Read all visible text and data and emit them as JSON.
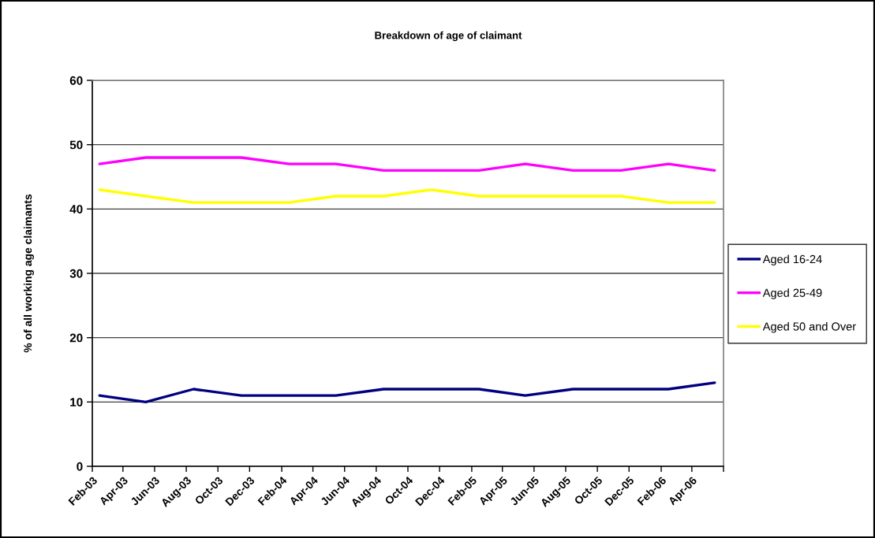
{
  "chart_data": {
    "type": "line",
    "title": "Breakdown of age of claimant",
    "ylabel": "% of all working age claimants",
    "x": [
      "2003-02-15",
      "2003-05-15",
      "2003-08-15",
      "2003-11-15",
      "2004-02-15",
      "2004-05-15",
      "2004-08-15",
      "2004-11-15",
      "2005-02-15",
      "2005-05-15",
      "2005-08-15",
      "2005-11-15",
      "2006-02-15",
      "2006-05-15"
    ],
    "series": [
      {
        "name": "Aged 16-24",
        "color": "#000080",
        "values": [
          11,
          10,
          12,
          11,
          11,
          11,
          12,
          12,
          12,
          11,
          12,
          12,
          12,
          13
        ]
      },
      {
        "name": "Aged 25-49",
        "color": "#ff00ff",
        "values": [
          47,
          48,
          48,
          48,
          47,
          47,
          46,
          46,
          46,
          47,
          46,
          46,
          47,
          46
        ]
      },
      {
        "name": "Aged 50 and Over",
        "color": "#ffff00",
        "values": [
          43,
          42,
          41,
          41,
          41,
          42,
          42,
          43,
          42,
          42,
          42,
          42,
          41,
          41
        ]
      }
    ],
    "xlim": [
      "2003-02-01",
      "2006-06-01"
    ],
    "xticks": [
      {
        "value": "2003-02-01",
        "label": "Feb-03"
      },
      {
        "value": "2003-04-01",
        "label": "Apr-03"
      },
      {
        "value": "2003-06-01",
        "label": "Jun-03"
      },
      {
        "value": "2003-08-01",
        "label": "Aug-03"
      },
      {
        "value": "2003-10-01",
        "label": "Oct-03"
      },
      {
        "value": "2003-12-01",
        "label": "Dec-03"
      },
      {
        "value": "2004-02-01",
        "label": "Feb-04"
      },
      {
        "value": "2004-04-01",
        "label": "Apr-04"
      },
      {
        "value": "2004-06-01",
        "label": "Jun-04"
      },
      {
        "value": "2004-08-01",
        "label": "Aug-04"
      },
      {
        "value": "2004-10-01",
        "label": "Oct-04"
      },
      {
        "value": "2004-12-01",
        "label": "Dec-04"
      },
      {
        "value": "2005-02-01",
        "label": "Feb-05"
      },
      {
        "value": "2005-04-01",
        "label": "Apr-05"
      },
      {
        "value": "2005-06-01",
        "label": "Jun-05"
      },
      {
        "value": "2005-08-01",
        "label": "Aug-05"
      },
      {
        "value": "2005-10-01",
        "label": "Oct-05"
      },
      {
        "value": "2005-12-01",
        "label": "Dec-05"
      },
      {
        "value": "2006-02-01",
        "label": "Feb-06"
      },
      {
        "value": "2006-04-01",
        "label": "Apr-06"
      },
      {
        "value": "2006-06-01",
        "label": null
      }
    ],
    "ylim": [
      0,
      60
    ],
    "yticks": [
      0,
      10,
      20,
      30,
      40,
      50,
      60
    ],
    "grid": "y",
    "legend": "right",
    "marker": "none",
    "line_style": "solid"
  }
}
